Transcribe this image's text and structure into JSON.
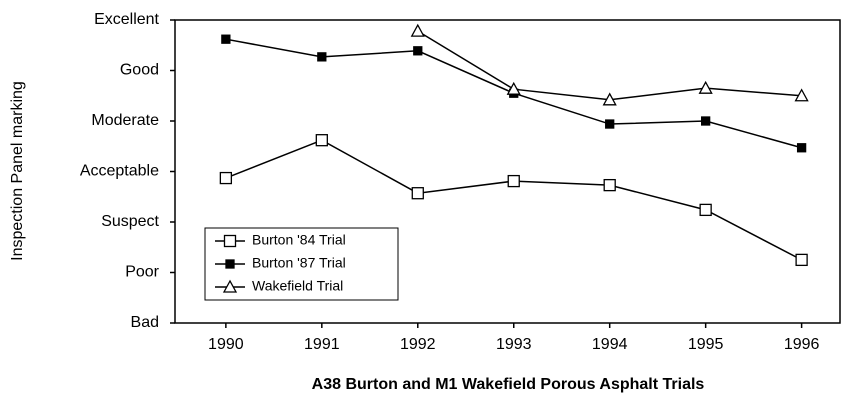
{
  "chart_data": {
    "type": "line",
    "title": "A38 Burton and M1 Wakefield Porous Asphalt Trials",
    "y_label": "Inspection Panel marking",
    "x": [
      1990,
      1991,
      1992,
      1993,
      1994,
      1995,
      1996
    ],
    "xlim": [
      1989.47,
      1996.4
    ],
    "xticks": [
      1990,
      1991,
      1992,
      1993,
      1994,
      1995,
      1996
    ],
    "ylim": [
      0,
      6
    ],
    "yticks": [
      {
        "value": 0,
        "label": "Bad"
      },
      {
        "value": 1,
        "label": "Poor"
      },
      {
        "value": 2,
        "label": "Suspect"
      },
      {
        "value": 3,
        "label": "Acceptable"
      },
      {
        "value": 4,
        "label": "Moderate"
      },
      {
        "value": 5,
        "label": "Good"
      },
      {
        "value": 6,
        "label": "Excellent"
      }
    ],
    "legend": "lower left",
    "series": [
      {
        "name": "Burton '84 Trial",
        "color": "#000000",
        "marker": "square",
        "values": [
          2.87,
          3.62,
          2.57,
          2.81,
          2.73,
          2.24,
          1.25
        ]
      },
      {
        "name": "Burton '87 Trial",
        "color": "#000000",
        "marker": "filled-square",
        "values": [
          5.62,
          5.27,
          5.39,
          4.55,
          3.94,
          4.0,
          3.47
        ]
      },
      {
        "name": "Wakefield Trial",
        "color": "#000000",
        "marker": "triangle",
        "values": [
          null,
          null,
          5.78,
          4.63,
          4.42,
          4.65,
          4.5
        ]
      }
    ]
  }
}
